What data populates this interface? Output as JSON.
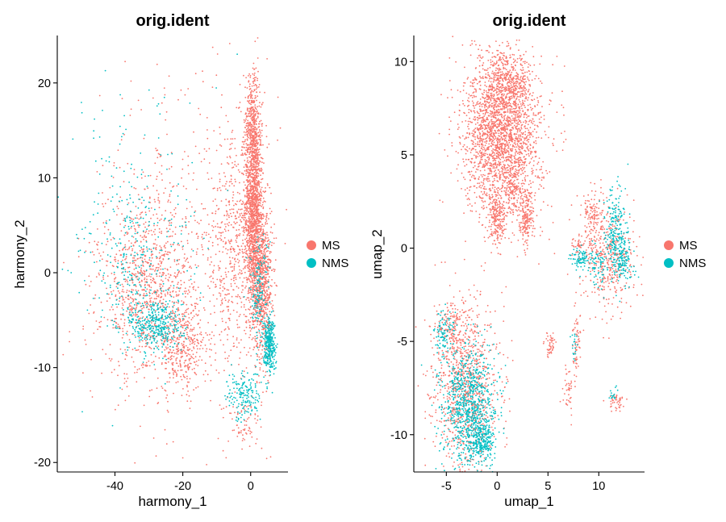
{
  "chart_data": [
    {
      "type": "scatter",
      "title": "orig.ident",
      "xlabel": "harmony_1",
      "ylabel": "harmony_2",
      "xlim": [
        -57,
        11
      ],
      "ylim": [
        -21,
        25
      ],
      "xticks": [
        -40,
        -20,
        0
      ],
      "yticks": [
        -20,
        -10,
        0,
        10,
        20
      ],
      "xtick_labels": [
        "-40",
        "-20",
        "0"
      ],
      "ytick_labels": [
        "-20",
        "-10",
        "0",
        "10",
        "20"
      ],
      "grid": false,
      "legend": "right",
      "series": [
        {
          "name": "MS",
          "color": "#F8766D",
          "clusters": [
            {
              "cx": 0.8,
              "cy": 7,
              "sx": 1.3,
              "sy": 5.5,
              "n": 1500
            },
            {
              "cx": 3.5,
              "cy": -1,
              "sx": 1.4,
              "sy": 4,
              "n": 700
            },
            {
              "cx": 0.5,
              "cy": 16,
              "sx": 1.2,
              "sy": 3,
              "n": 250
            },
            {
              "cx": -5,
              "cy": 2,
              "sx": 5,
              "sy": 6,
              "n": 550
            },
            {
              "cx": -30,
              "cy": -2,
              "sx": 7,
              "sy": 4.5,
              "n": 950
            },
            {
              "cx": -20,
              "cy": -8,
              "sx": 3.5,
              "sy": 2.2,
              "n": 300
            },
            {
              "cx": -22,
              "cy": 5,
              "sx": 14,
              "sy": 9,
              "n": 350
            },
            {
              "cx": -2,
              "cy": -16,
              "sx": 3,
              "sy": 1.5,
              "n": 70
            }
          ]
        },
        {
          "name": "NMS",
          "color": "#00BFC4",
          "clusters": [
            {
              "cx": -28,
              "cy": -5.5,
              "sx": 4,
              "sy": 1.5,
              "n": 380
            },
            {
              "cx": -35,
              "cy": 2,
              "sx": 5,
              "sy": 4,
              "n": 200
            },
            {
              "cx": 5.5,
              "cy": -7.5,
              "sx": 0.9,
              "sy": 1.5,
              "n": 320
            },
            {
              "cx": 2.5,
              "cy": -2,
              "sx": 1.5,
              "sy": 3,
              "n": 150
            },
            {
              "cx": -2,
              "cy": -13,
              "sx": 2.5,
              "sy": 1.3,
              "n": 170
            },
            {
              "cx": -32,
              "cy": 6,
              "sx": 12,
              "sy": 8,
              "n": 140
            }
          ]
        }
      ]
    },
    {
      "type": "scatter",
      "title": "orig.ident",
      "xlabel": "umap_1",
      "ylabel": "umap_2",
      "xlim": [
        -8.2,
        14.5
      ],
      "ylim": [
        -12,
        11.4
      ],
      "xticks": [
        -5,
        0,
        5,
        10
      ],
      "yticks": [
        -10,
        -5,
        0,
        5,
        10
      ],
      "xtick_labels": [
        "-5",
        "0",
        "5",
        "10"
      ],
      "ytick_labels": [
        "-10",
        "-5",
        "0",
        "5",
        "10"
      ],
      "grid": false,
      "legend": "right",
      "series": [
        {
          "name": "MS",
          "color": "#F8766D",
          "clusters": [
            {
              "cx": 0.5,
              "cy": 6,
              "sx": 1.9,
              "sy": 2.2,
              "n": 2400
            },
            {
              "cx": 1,
              "cy": 8.8,
              "sx": 1.1,
              "sy": 0.8,
              "n": 300
            },
            {
              "cx": 0,
              "cy": 1.6,
              "sx": 0.35,
              "sy": 0.7,
              "n": 180
            },
            {
              "cx": 2.9,
              "cy": 1.6,
              "sx": 0.35,
              "sy": 0.7,
              "n": 180
            },
            {
              "cx": 1.5,
              "cy": 3,
              "sx": 0.4,
              "sy": 0.4,
              "n": 60
            },
            {
              "cx": 11,
              "cy": -0.5,
              "sx": 1.3,
              "sy": 1.4,
              "n": 400
            },
            {
              "cx": 9.5,
              "cy": 1.6,
              "sx": 0.5,
              "sy": 0.8,
              "n": 120
            },
            {
              "cx": 8,
              "cy": 0.2,
              "sx": 0.4,
              "sy": 0.4,
              "n": 40
            },
            {
              "cx": -3,
              "cy": -7.5,
              "sx": 1.6,
              "sy": 2.3,
              "n": 900
            },
            {
              "cx": -4.5,
              "cy": -4.3,
              "sx": 0.9,
              "sy": 0.6,
              "n": 150
            },
            {
              "cx": 5.3,
              "cy": -5.2,
              "sx": 0.3,
              "sy": 0.4,
              "n": 45
            },
            {
              "cx": 7.8,
              "cy": -5.3,
              "sx": 0.25,
              "sy": 0.8,
              "n": 60
            },
            {
              "cx": 7,
              "cy": -7.6,
              "sx": 0.25,
              "sy": 0.6,
              "n": 40
            },
            {
              "cx": 11.7,
              "cy": -8.2,
              "sx": 0.35,
              "sy": 0.25,
              "n": 45
            }
          ]
        },
        {
          "name": "NMS",
          "color": "#00BFC4",
          "clusters": [
            {
              "cx": -2.7,
              "cy": -8.5,
              "sx": 1.3,
              "sy": 1.6,
              "n": 900
            },
            {
              "cx": -1.5,
              "cy": -10.4,
              "sx": 0.6,
              "sy": 0.5,
              "n": 200
            },
            {
              "cx": -5.2,
              "cy": -4.6,
              "sx": 0.5,
              "sy": 0.7,
              "n": 100
            },
            {
              "cx": 11.6,
              "cy": 0.8,
              "sx": 0.6,
              "sy": 1.2,
              "n": 230
            },
            {
              "cx": 12.3,
              "cy": -0.8,
              "sx": 0.6,
              "sy": 0.6,
              "n": 120
            },
            {
              "cx": 8.3,
              "cy": -0.6,
              "sx": 0.5,
              "sy": 0.3,
              "n": 90
            },
            {
              "cx": 10,
              "cy": -1.2,
              "sx": 0.5,
              "sy": 0.5,
              "n": 60
            },
            {
              "cx": 7.6,
              "cy": -5.2,
              "sx": 0.15,
              "sy": 0.5,
              "n": 20
            },
            {
              "cx": 11.4,
              "cy": -7.8,
              "sx": 0.2,
              "sy": 0.25,
              "n": 15
            }
          ]
        }
      ]
    }
  ]
}
